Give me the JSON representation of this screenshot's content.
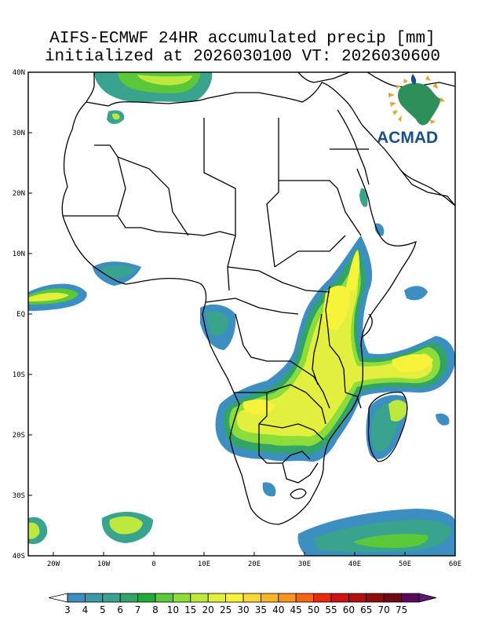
{
  "title_line1": "AIFS-ECMWF 24HR accumulated precip [mm]",
  "title_line2": "initialized at 2026030100 VT: 2026030600",
  "logo": {
    "text": "ACMAD",
    "icon": "africa-sun-logo"
  },
  "axes": {
    "x_ticks": [
      "20W",
      "10W",
      "0",
      "10E",
      "20E",
      "30E",
      "40E",
      "50E",
      "60E"
    ],
    "y_ticks": [
      "40N",
      "30N",
      "20N",
      "10N",
      "EQ",
      "10S",
      "20S",
      "30S",
      "40S"
    ],
    "lon_range": [
      -25,
      60
    ],
    "lat_range": [
      -40,
      40
    ]
  },
  "colorbar": {
    "labels": [
      "3",
      "4",
      "5",
      "6",
      "7",
      "8",
      "10",
      "15",
      "20",
      "25",
      "30",
      "35",
      "40",
      "45",
      "50",
      "55",
      "60",
      "65",
      "70",
      "75"
    ],
    "colors": [
      "#3c8fc0",
      "#3a9aa8",
      "#3aa38e",
      "#32a468",
      "#22a83a",
      "#5bc83a",
      "#8cdc3a",
      "#bde83e",
      "#e2ef3e",
      "#f7f23a",
      "#f9d63a",
      "#f8b42c",
      "#f6941f",
      "#f26612",
      "#e82a0c",
      "#cc1212",
      "#b01010",
      "#8e0e0e",
      "#6e0a16",
      "#5a0a5a"
    ]
  }
}
